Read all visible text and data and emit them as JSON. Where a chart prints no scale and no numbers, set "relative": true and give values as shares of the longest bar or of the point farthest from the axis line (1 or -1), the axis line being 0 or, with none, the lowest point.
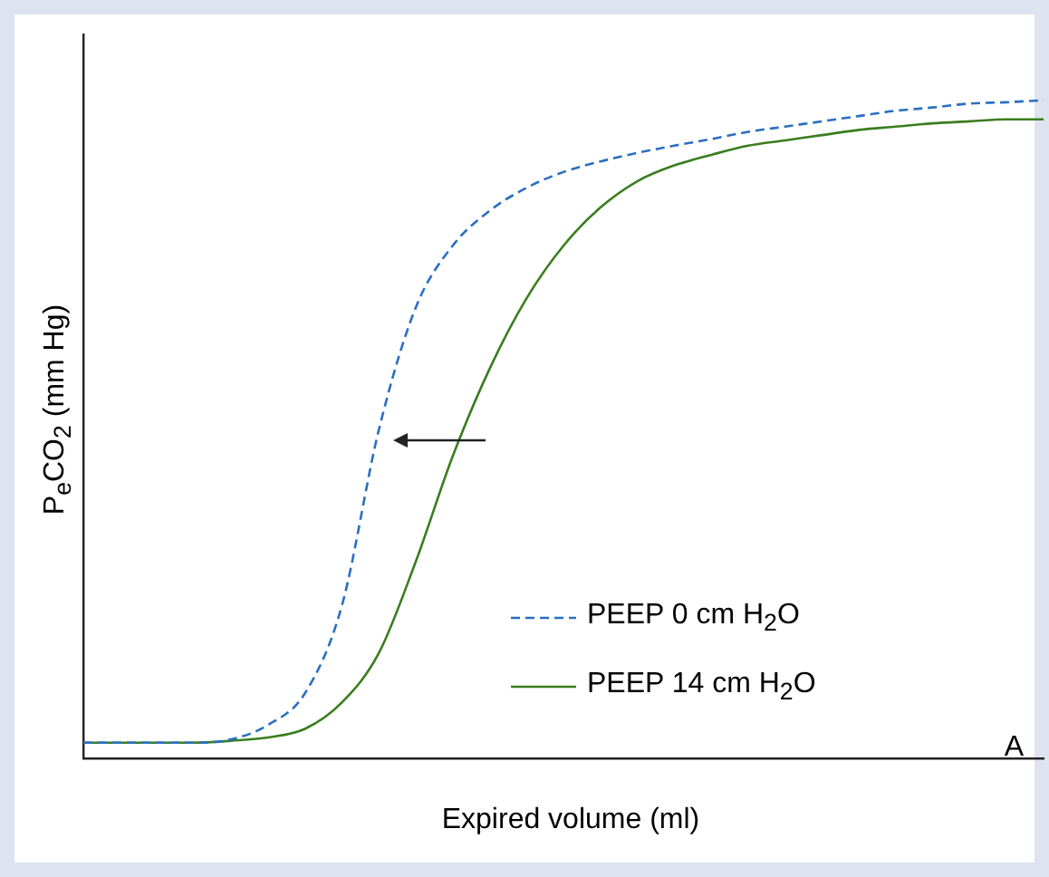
{
  "chart_data": {
    "type": "line",
    "relative": true,
    "xlabel": "Expired volume (ml)",
    "ylabel": "P$_{e}$CO$_{2}$ (mm Hg)",
    "annotations": [
      "A"
    ],
    "legend": "bottom right",
    "grid": false,
    "marker": "none",
    "categories": [
      null,
      null,
      null,
      null,
      null,
      null,
      null,
      null,
      null,
      null,
      null,
      null,
      null,
      null,
      null,
      null,
      null,
      null,
      null,
      null,
      null,
      null,
      null,
      null,
      null,
      null,
      null
    ],
    "series": [
      {
        "name": "PEEP 0 cm H$_{2}$O",
        "color": "#2a6fc0",
        "line_style": "dashed",
        "values": [
          0.024,
          0.024,
          0.024,
          0.024,
          0.029,
          0.051,
          0.099,
          0.232,
          0.499,
          0.685,
          0.779,
          0.832,
          0.867,
          0.891,
          0.907,
          0.92,
          0.931,
          0.941,
          0.952,
          0.96,
          0.968,
          0.976,
          0.984,
          0.989,
          0.995,
          0.997,
          1
        ]
      },
      {
        "name": "PEEP 14 cm H$_{2}$O",
        "color": "#3a7d1e",
        "line_style": "solid",
        "values": [
          0.024,
          0.024,
          0.024,
          0.024,
          0.027,
          0.032,
          0.045,
          0.085,
          0.16,
          0.299,
          0.459,
          0.592,
          0.699,
          0.779,
          0.837,
          0.877,
          0.901,
          0.917,
          0.931,
          0.939,
          0.947,
          0.955,
          0.96,
          0.965,
          0.968,
          0.971,
          0.971
        ]
      }
    ]
  }
}
